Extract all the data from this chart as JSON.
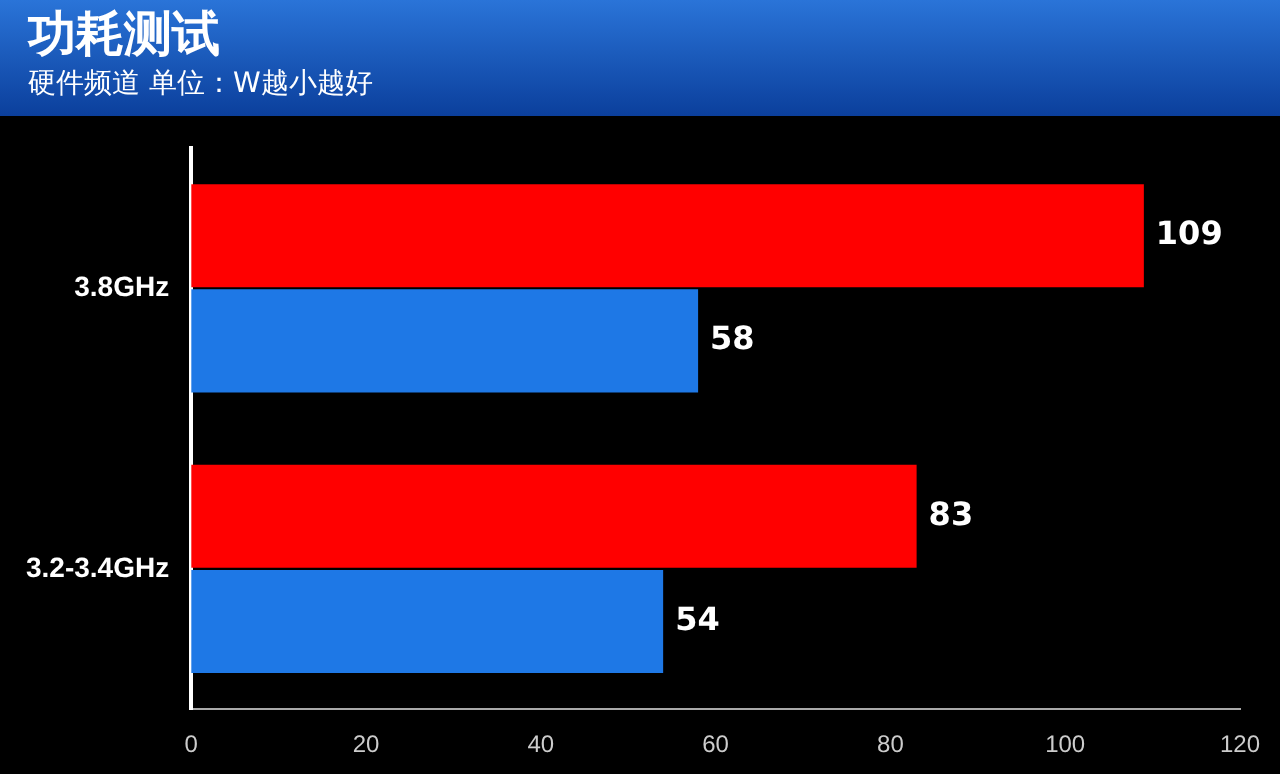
{
  "chart_data": {
    "type": "bar",
    "orientation": "horizontal",
    "title": "功耗测试",
    "subtitle": "硬件频道 单位：W越小越好",
    "categories": [
      "3.8GHz",
      "3.2-3.4GHz"
    ],
    "series": [
      {
        "color": "#ff0000",
        "values": [
          109,
          83
        ]
      },
      {
        "color": "#1e78e6",
        "values": [
          58,
          54
        ]
      }
    ],
    "xlim": [
      0,
      120
    ],
    "xticks": [
      0,
      20,
      40,
      60,
      80,
      100,
      120
    ],
    "grid": false,
    "legend": false,
    "data_labels": true
  }
}
